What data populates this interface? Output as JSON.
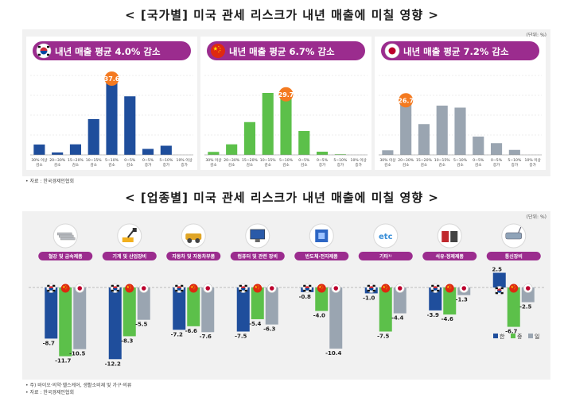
{
  "titles": {
    "country": "< [국가별] 미국 관세 리스크가 내년 매출에 미칠 영향 >",
    "industry": "< [업종별] 미국 관세 리스크가 내년 매출에 미칠 영향 >"
  },
  "unit": "(단위: %)",
  "notes": {
    "source1": "• 자료 : 한국경제인협회",
    "footnote2": "• 주) 바이오·의약·헬스케어, 생활소비재 및 가구·의류",
    "source2": "• 자료 : 한국경제인협회"
  },
  "colors": {
    "purple": "#9b2c8e",
    "orange": "#f47a20",
    "korea": "#1f4e9c",
    "china": "#5cc04a",
    "japan": "#9aa5b1"
  },
  "chart_data": [
    {
      "type": "bar",
      "title": "내년 매출 평균 4.0% 감소",
      "flag": "korea-flag-icon",
      "categories": [
        "30% 이상 감소",
        "20~30% 감소",
        "15~20% 감소",
        "10~15% 감소",
        "5~10% 감소",
        "0~5% 감소",
        "0~5% 증가",
        "5~10% 증가",
        "10% 이상 증가"
      ],
      "values": [
        5.2,
        1.2,
        5.3,
        18.0,
        37.6,
        29.5,
        3.0,
        4.6,
        0
      ],
      "highlight_label": "37.6",
      "highlight_index": 4
    },
    {
      "type": "bar",
      "title": "내년 매출 평균 6.7% 감소",
      "flag": "china-flag-icon",
      "categories": [
        "30% 이상 감소",
        "20~30% 감소",
        "15~20% 감소",
        "10~15% 감소",
        "5~10% 감소",
        "0~5% 감소",
        "0~5% 증가",
        "5~10% 증가",
        "10% 이상 증가"
      ],
      "values": [
        1.5,
        5.3,
        16.5,
        31.2,
        29.7,
        12.0,
        1.6,
        0.3,
        0
      ],
      "highlight_label": "29.7",
      "highlight_index": 4
    },
    {
      "type": "bar",
      "title": "내년 매출 평균 7.2% 감소",
      "flag": "japan-flag-icon",
      "categories": [
        "30% 이상 감소",
        "20~30% 감소",
        "15~20% 감소",
        "10~15% 감소",
        "5~10% 감소",
        "0~5% 감소",
        "0~5% 증가",
        "5~10% 증가",
        "10% 이상 증가"
      ],
      "values": [
        2.3,
        26.7,
        15.5,
        24.8,
        23.8,
        9.2,
        5.9,
        2.5,
        0
      ],
      "highlight_label": "26.7",
      "highlight_index": 1
    },
    {
      "type": "bar",
      "categories": [
        "철강 및 금속제품",
        "기계 및 산업장비",
        "자동차 및 자동차부품",
        "컴퓨터 및 관련 장비",
        "반도체·전자제품",
        "기타¹⁾",
        "석유·정제제품",
        "통신장비"
      ],
      "icons": [
        "steel-icon",
        "machinery-icon",
        "car-parts-icon",
        "computer-icon",
        "semiconductor-icon",
        "etc-icon",
        "petroleum-icon",
        "telecom-icon"
      ],
      "etc_text": "etc",
      "series": [
        {
          "name": "한",
          "values": [
            -8.7,
            -12.2,
            -7.2,
            -7.5,
            -0.8,
            -1.0,
            -3.9,
            2.5
          ]
        },
        {
          "name": "중",
          "values": [
            -11.7,
            -8.3,
            -6.6,
            -5.4,
            -4.0,
            -7.5,
            -4.6,
            -6.7
          ]
        },
        {
          "name": "일",
          "values": [
            -10.5,
            -5.5,
            -7.6,
            -6.3,
            -10.4,
            -4.4,
            -1.3,
            -2.5
          ]
        }
      ],
      "value_labels": [
        [
          "-8.7",
          "-12.2",
          "-7.2",
          "-7.5",
          "-0.8",
          "-1.0",
          "-3.9",
          "2.5"
        ],
        [
          "-11.7",
          "-8.3",
          "-6.6",
          "-5.4",
          "-4.0",
          "-7.5",
          "-4.6",
          "-6.7"
        ],
        [
          "-10.5",
          "-5.5",
          "-7.6",
          "-6.3",
          "-10.4",
          "-4.4",
          "-1.3",
          "-2.5"
        ]
      ],
      "legend": [
        "한",
        "중",
        "일"
      ]
    }
  ]
}
